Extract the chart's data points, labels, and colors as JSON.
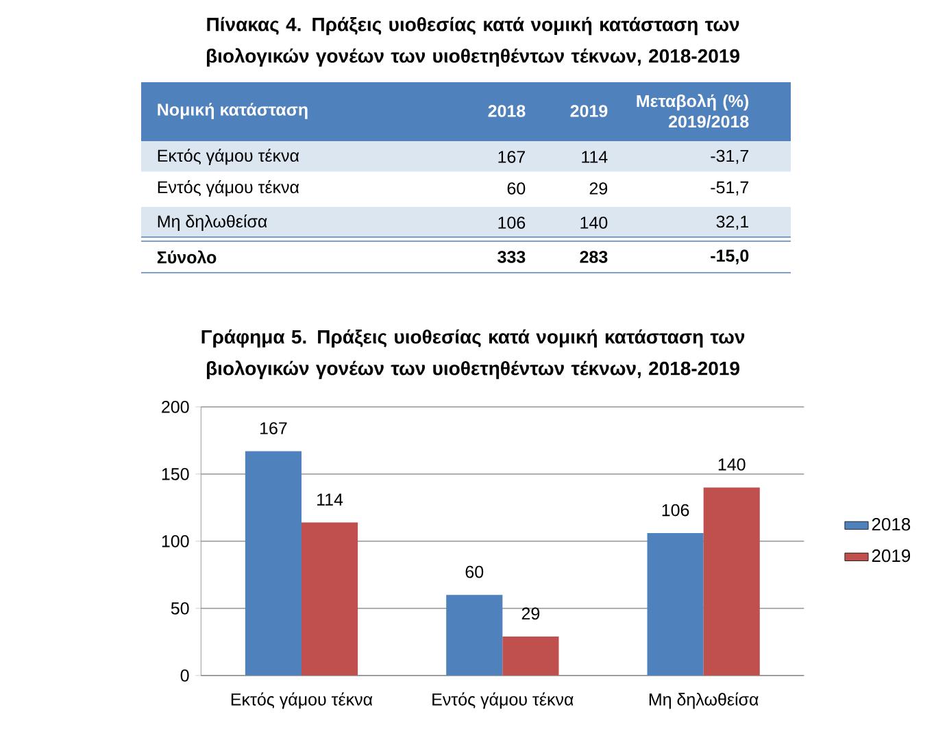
{
  "chart_data": [
    {
      "type": "other",
      "title": "Πίνακας 4. Πράξεις υιοθεσίας κατά νομική κατάσταση των βιολογικών γονέων των υιοθετηθέντων τέκνων, 2018-2019",
      "xlabel": "Νομική κατάσταση",
      "categories": [
        "Εκτός γάμου τέκνα",
        "Εντός γάμου τέκνα",
        "Μη δηλωθείσα",
        "Σύνολο"
      ],
      "series": [
        {
          "name": "2018",
          "values": [
            167,
            60,
            106,
            333
          ],
          "value_labels": [
            "167",
            "60",
            "106",
            "333"
          ]
        },
        {
          "name": "2019",
          "values": [
            114,
            29,
            140,
            283
          ],
          "value_labels": [
            "114",
            "29",
            "140",
            "283"
          ]
        },
        {
          "name": "Μεταβολή (%) 2019/2018",
          "values": [
            -31.7,
            -51.7,
            32.1,
            -15.0
          ],
          "value_labels": [
            "-31,7",
            "-51,7",
            "32,1",
            "-15,0"
          ]
        }
      ]
    },
    {
      "type": "bar",
      "title": "Γράφημα 5. Πράξεις υιοθεσίας κατά νομική κατάσταση των βιολογικών γονέων των υιοθετηθέντων τέκνων, 2018-2019",
      "categories": [
        "Εκτός γάμου τέκνα",
        "Εντός γάμου τέκνα",
        "Μη δηλωθείσα"
      ],
      "series": [
        {
          "name": "2018",
          "color": "#4f81bd",
          "values": [
            167,
            60,
            106
          ]
        },
        {
          "name": "2019",
          "color": "#c0504d",
          "values": [
            114,
            29,
            140
          ]
        }
      ],
      "ylim": [
        0,
        200
      ],
      "yticks": [
        0,
        50,
        100,
        150,
        200
      ],
      "grid": "y",
      "legend": "right",
      "data_labels": true
    }
  ]
}
